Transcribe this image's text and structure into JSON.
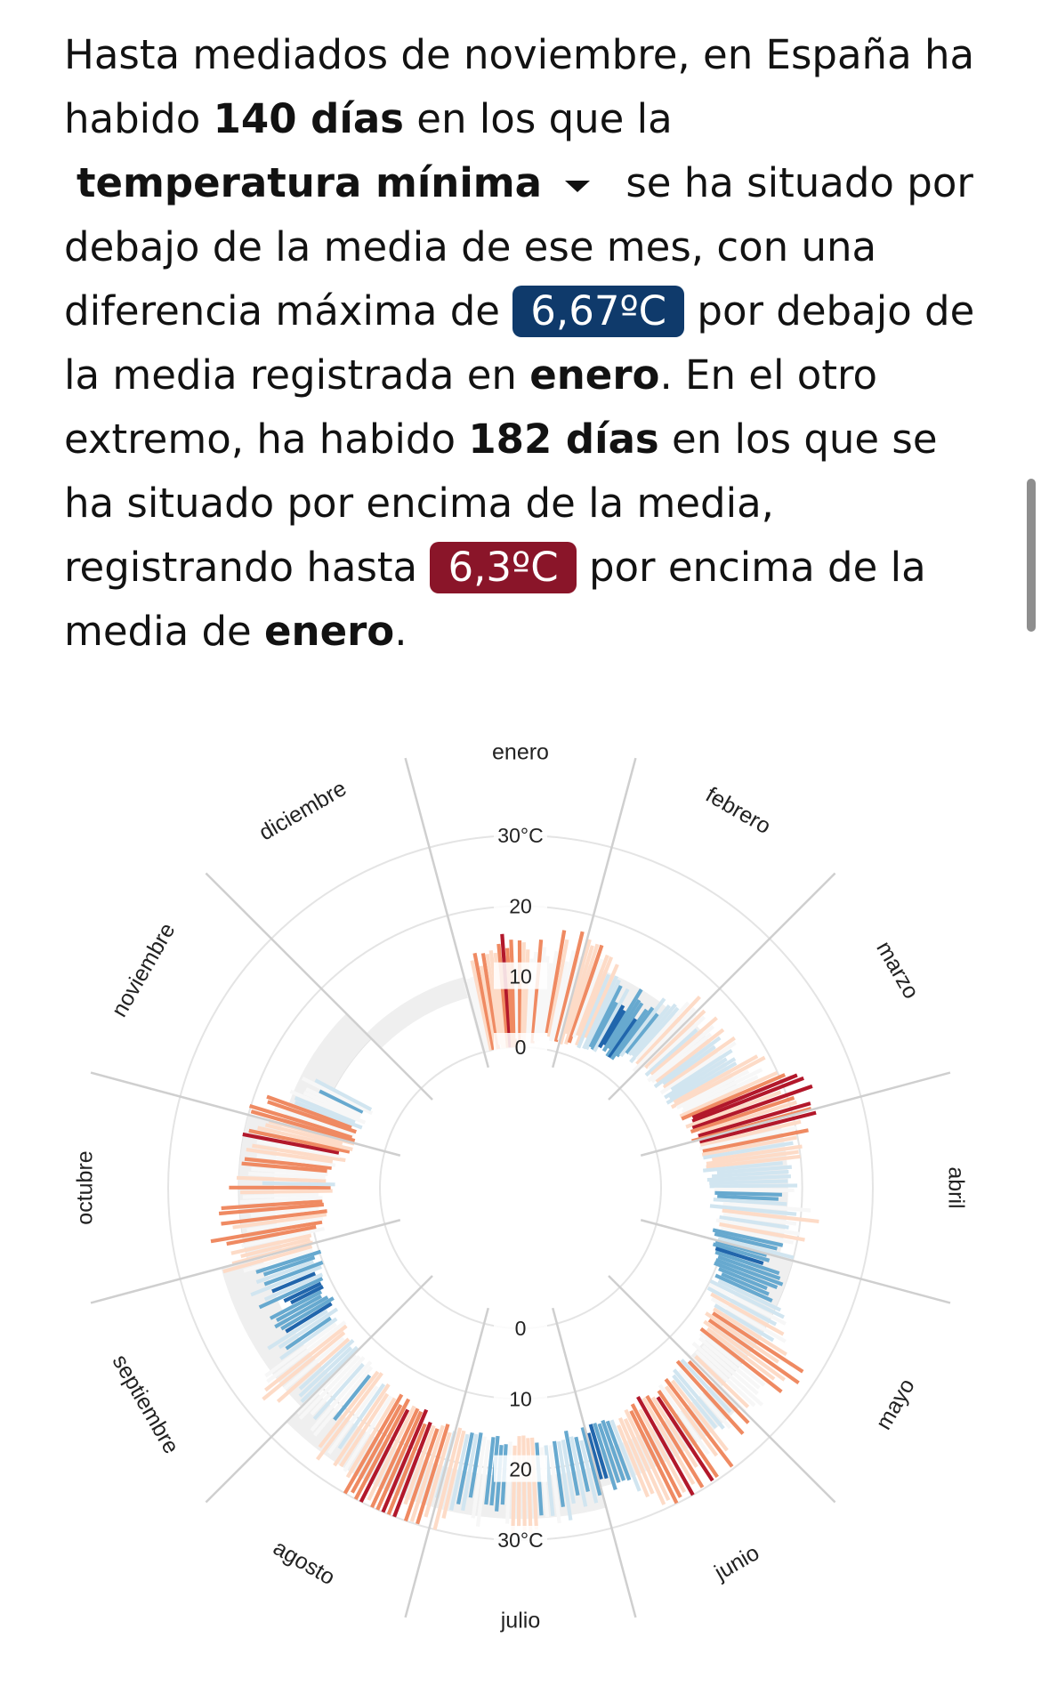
{
  "text": {
    "p1": "Hasta mediados de noviembre, en España ha habido",
    "cold_days": "140 días",
    "p2": "en los que la",
    "metric_select": "temperatura mínima",
    "p3": "se ha situado por debajo de la media de ese mes, con una diferencia máxima de",
    "cold_max": "6,67ºC",
    "p4": "por debajo de la media registrada en",
    "cold_month": "enero",
    "p5": ". En el otro extremo, ha habido",
    "warm_days": "182 días",
    "p6": "en los que se ha situado por encima de la media, registrando hasta",
    "warm_max": "6,3ºC",
    "p7": "por encima de la media de",
    "warm_month": "enero",
    "p8": "."
  },
  "colors": {
    "cold_pill": "#0f3a6b",
    "warm_pill": "#8a1529",
    "scale": [
      "#2166ac",
      "#67a9cf",
      "#d1e5f0",
      "#f7f7f7",
      "#fddbc7",
      "#ef8a62",
      "#b2182b"
    ]
  },
  "chart_data": {
    "type": "radial-bar",
    "months": [
      "enero",
      "febrero",
      "marzo",
      "abril",
      "mayo",
      "junio",
      "julio",
      "agosto",
      "septiembre",
      "octubre",
      "noviembre",
      "diciembre"
    ],
    "radial_ticks_top": [
      "0",
      "10",
      "20",
      "30°C"
    ],
    "radial_ticks_bottom": [
      "0",
      "10",
      "20",
      "30°C"
    ],
    "radial_range": [
      0,
      30
    ],
    "value_unit": "°C",
    "monthly_min_temp_range": [
      {
        "month": "enero",
        "low": 0,
        "high": 11,
        "max_anomaly_below": 6.67,
        "max_anomaly_above": 6.3
      },
      {
        "month": "febrero",
        "low": 3,
        "high": 14
      },
      {
        "month": "marzo",
        "low": 5,
        "high": 15
      },
      {
        "month": "abril",
        "low": 7,
        "high": 19
      },
      {
        "month": "mayo",
        "low": 10,
        "high": 21
      },
      {
        "month": "junio",
        "low": 15,
        "high": 25
      },
      {
        "month": "julio",
        "low": 17,
        "high": 28
      },
      {
        "month": "agosto",
        "low": 17,
        "high": 28
      },
      {
        "month": "septiembre",
        "low": 14,
        "high": 25
      },
      {
        "month": "octubre",
        "low": 11,
        "high": 21
      },
      {
        "month": "noviembre",
        "low": 6,
        "high": 16
      },
      {
        "month": "diciembre",
        "low": 4,
        "high": 12
      }
    ],
    "days_below_average": 140,
    "days_above_average": 182,
    "period_end": "mediados de noviembre"
  }
}
